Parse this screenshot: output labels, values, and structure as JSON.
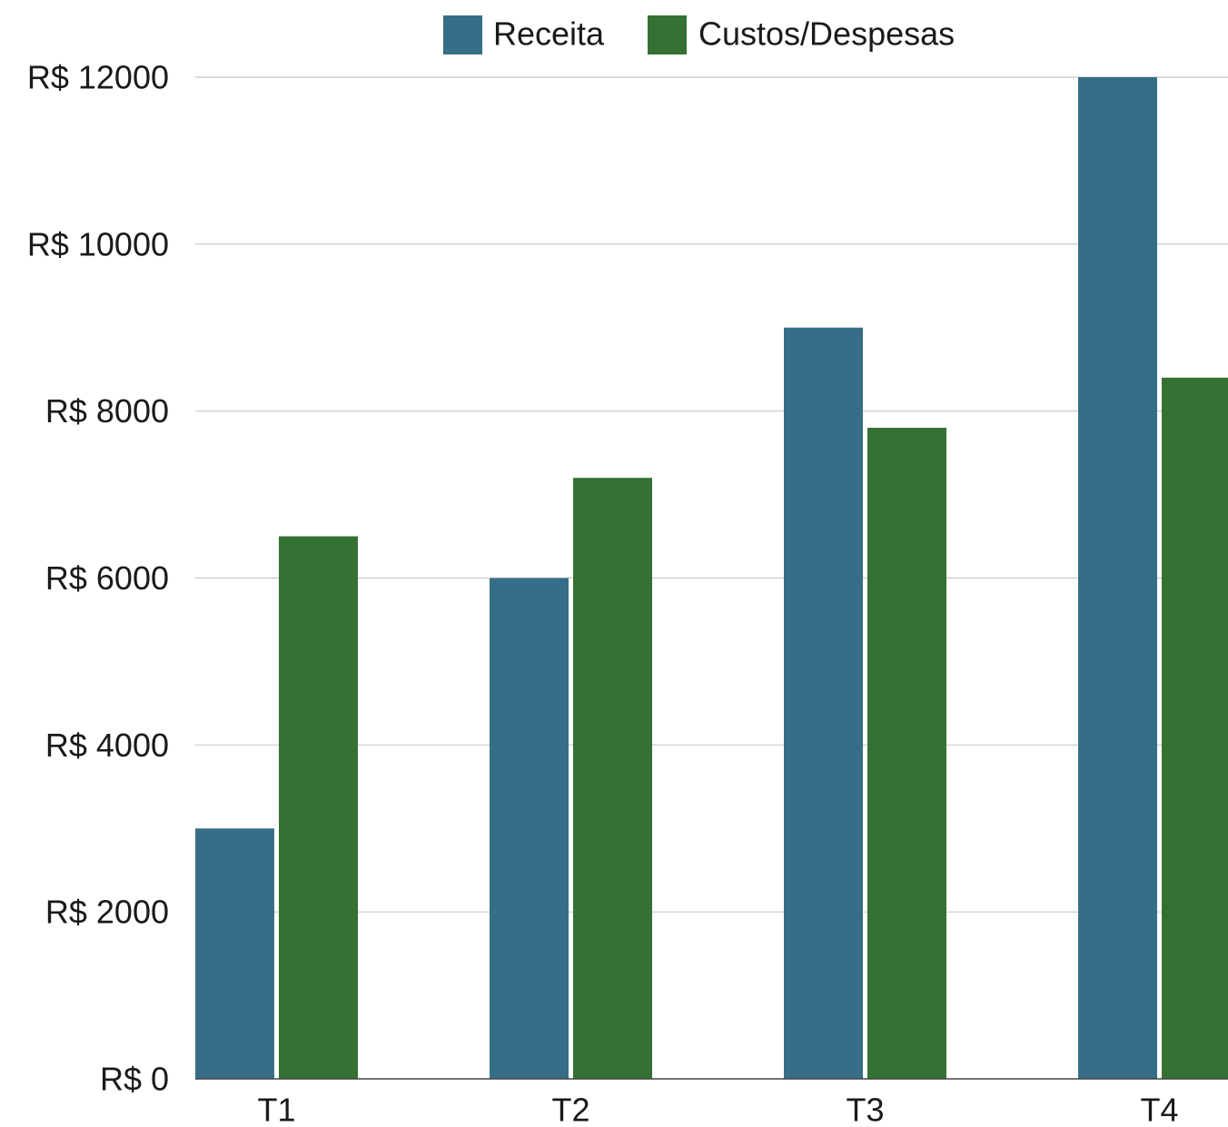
{
  "chart_data": {
    "type": "bar",
    "title": "",
    "xlabel": "",
    "ylabel": "",
    "categories": [
      "T1",
      "T2",
      "T3",
      "T4"
    ],
    "series": [
      {
        "name": "Receita",
        "color": "#366e88",
        "values": [
          3000,
          6000,
          9000,
          12000
        ]
      },
      {
        "name": "Custos/Despesas",
        "color": "#347133",
        "values": [
          6500,
          7200,
          7800,
          8400
        ]
      }
    ],
    "ylim": [
      0,
      12000
    ],
    "yticks": [
      0,
      2000,
      4000,
      6000,
      8000,
      10000,
      12000
    ],
    "ytick_labels": [
      "R$ 0",
      "R$ 2000",
      "R$ 4000",
      "R$ 6000",
      "R$ 8000",
      "R$ 10000",
      "R$ 12000"
    ],
    "grid": true,
    "legend_position": "top-center"
  }
}
